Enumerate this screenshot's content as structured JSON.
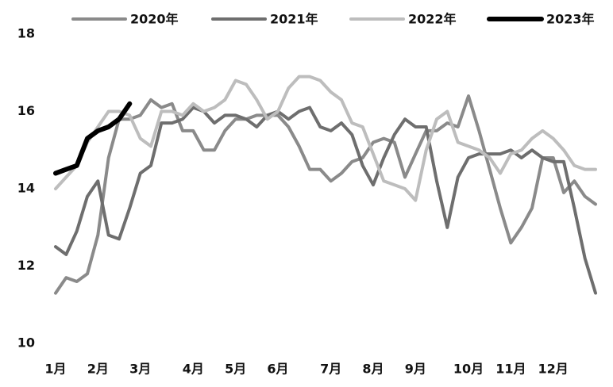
{
  "chart_data": {
    "type": "line",
    "categories": [
      "1月",
      null,
      null,
      null,
      "2月",
      null,
      null,
      null,
      "3月",
      null,
      null,
      null,
      null,
      "4月",
      null,
      null,
      null,
      "5月",
      null,
      null,
      null,
      "6月",
      null,
      null,
      null,
      null,
      "7月",
      null,
      null,
      null,
      "8月",
      null,
      null,
      null,
      "9月",
      null,
      null,
      null,
      null,
      "10月",
      null,
      null,
      null,
      "11月",
      null,
      null,
      null,
      "12月",
      null,
      null,
      null,
      null
    ],
    "series": [
      {
        "name": "2020年",
        "color": "#8a8a8a",
        "values": [
          11.3,
          11.7,
          11.6,
          11.8,
          12.8,
          14.8,
          15.8,
          15.8,
          15.9,
          16.3,
          16.1,
          16.2,
          15.5,
          15.5,
          15.0,
          15.0,
          15.5,
          15.8,
          15.8,
          15.9,
          15.9,
          15.9,
          15.6,
          15.1,
          14.5,
          14.5,
          14.2,
          14.4,
          14.7,
          14.8,
          15.2,
          15.3,
          15.2,
          14.3,
          14.9,
          15.5,
          15.5,
          15.7,
          15.6,
          16.4,
          15.5,
          14.5,
          13.5,
          12.6,
          13.0,
          13.5,
          14.8,
          14.8,
          13.9,
          14.2,
          13.8,
          13.6
        ]
      },
      {
        "name": "2021年",
        "color": "#6e6e6e",
        "values": [
          12.5,
          12.3,
          12.9,
          13.8,
          14.2,
          12.8,
          12.7,
          13.5,
          14.4,
          14.6,
          15.7,
          15.7,
          15.8,
          16.1,
          16.0,
          15.7,
          15.9,
          15.9,
          15.8,
          15.6,
          15.9,
          16.0,
          15.8,
          16.0,
          16.1,
          15.6,
          15.5,
          15.7,
          15.4,
          14.6,
          14.1,
          14.8,
          15.4,
          15.8,
          15.6,
          15.6,
          14.2,
          13.0,
          14.3,
          14.8,
          14.9,
          14.9,
          14.9,
          15.0,
          14.8,
          15.0,
          14.8,
          14.7,
          14.7,
          13.5,
          12.2,
          11.3
        ]
      },
      {
        "name": "2022年",
        "color": "#bdbdbd",
        "values": [
          14.0,
          14.3,
          14.6,
          15.2,
          15.6,
          16.0,
          16.0,
          15.9,
          15.3,
          15.1,
          16.0,
          16.0,
          15.9,
          16.2,
          16.0,
          16.1,
          16.3,
          16.8,
          16.7,
          16.3,
          15.8,
          16.0,
          16.6,
          16.9,
          16.9,
          16.8,
          16.5,
          16.3,
          15.7,
          15.6,
          14.9,
          14.2,
          14.1,
          14.0,
          13.7,
          15.0,
          15.8,
          16.0,
          15.2,
          15.1,
          15.0,
          14.8,
          14.4,
          14.9,
          15.0,
          15.3,
          15.5,
          15.3,
          15.0,
          14.6,
          14.5,
          14.5
        ]
      },
      {
        "name": "2023年",
        "color": "#000000",
        "values": [
          14.4,
          14.5,
          14.6,
          15.3,
          15.5,
          15.6,
          15.8,
          16.2,
          null,
          null,
          null,
          null,
          null,
          null,
          null,
          null,
          null,
          null,
          null,
          null,
          null,
          null,
          null,
          null,
          null,
          null,
          null,
          null,
          null,
          null,
          null,
          null,
          null,
          null,
          null,
          null,
          null,
          null,
          null,
          null,
          null,
          null,
          null,
          null,
          null,
          null,
          null,
          null,
          null,
          null,
          null,
          null
        ]
      }
    ],
    "ylim": [
      10,
      18
    ],
    "yticks": [
      10,
      12,
      14,
      16,
      18
    ]
  }
}
